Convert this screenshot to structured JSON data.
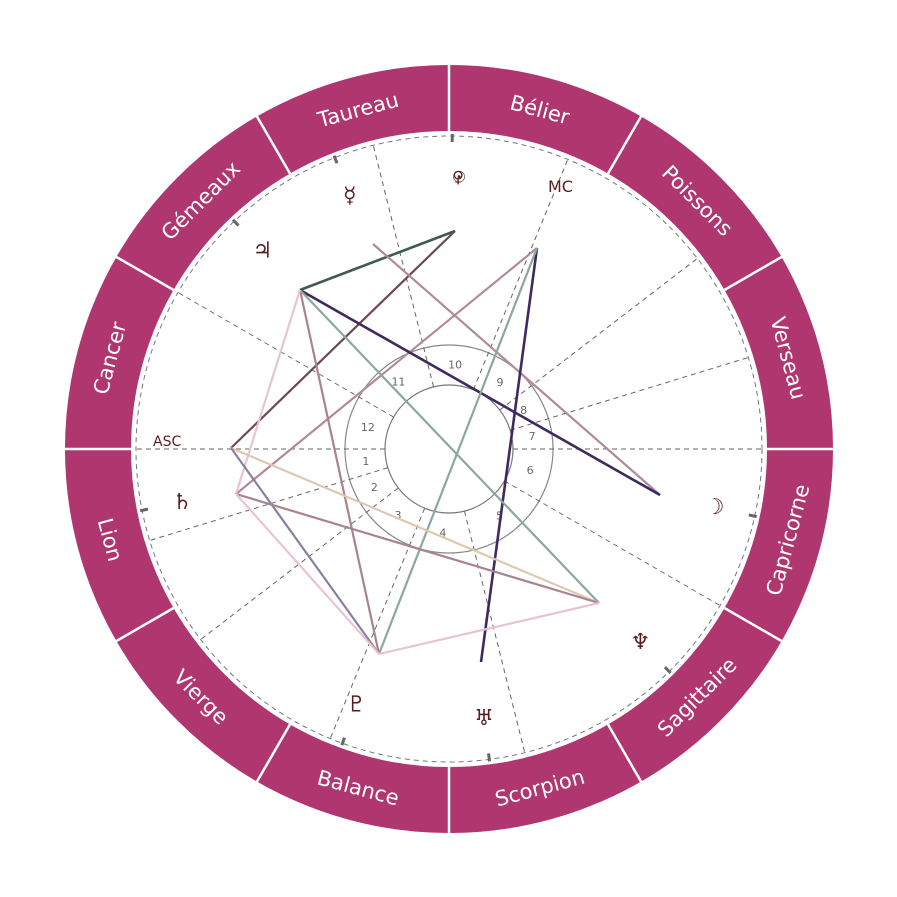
{
  "colors": {
    "ring": "#b03670",
    "ring_text": "#ffffff",
    "glyph": "#5a1e1e",
    "dashed": "#777777"
  },
  "signs": [
    "Bélier",
    "Taureau",
    "Gémeaux",
    "Cancer",
    "Lion",
    "Vierge",
    "Balance",
    "Scorpion",
    "Sagittaire",
    "Capricorne",
    "Verseau",
    "Poissons"
  ],
  "axes": {
    "asc": "ASC",
    "mc": "MC"
  },
  "houses": [
    "1",
    "2",
    "3",
    "4",
    "5",
    "6",
    "7",
    "8",
    "9",
    "10",
    "11",
    "12"
  ],
  "planets": [
    {
      "name": "sun-venus",
      "glyph": "☉♀"
    },
    {
      "name": "mercury",
      "glyph": "☿"
    },
    {
      "name": "jupiter",
      "glyph": "♃"
    },
    {
      "name": "saturn",
      "glyph": "♄"
    },
    {
      "name": "pluto",
      "glyph": "♇"
    },
    {
      "name": "uranus",
      "glyph": "♅"
    },
    {
      "name": "neptune",
      "glyph": "♆"
    },
    {
      "name": "moon",
      "glyph": "☽"
    }
  ],
  "aspect_colors": [
    "#3f5a50",
    "#6b4a55",
    "#b08a9a",
    "#b08a9a",
    "#3e2a5f",
    "#3e2a5f",
    "#8aa89b",
    "#8aa89b",
    "#a8848f",
    "#e8c4d0",
    "#dcc9b0",
    "#8a80a0",
    "#a8848f",
    "#e8c4d0",
    "#e8c4d0"
  ]
}
